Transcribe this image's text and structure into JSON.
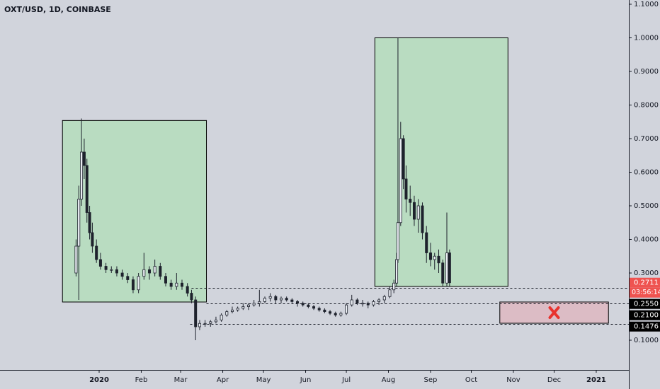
{
  "chart_data": {
    "type": "candlestick",
    "title": "OXT/USD, 1D, COINBASE",
    "x": [
      -17,
      -15,
      -13,
      -11,
      -9,
      -7,
      -5,
      -2,
      1,
      5,
      9,
      13,
      17,
      21,
      25,
      29,
      33,
      37,
      41,
      45,
      49,
      53,
      57,
      61,
      65,
      68,
      71,
      74,
      78,
      82,
      86,
      90,
      94,
      98,
      102,
      106,
      110,
      114,
      118,
      122,
      126,
      130,
      134,
      138,
      142,
      146,
      150,
      154,
      158,
      162,
      166,
      170,
      174,
      178,
      182,
      186,
      190,
      194,
      198,
      202,
      206,
      210,
      214,
      217,
      219,
      220,
      222,
      224,
      226,
      229,
      232,
      235,
      238,
      241,
      244,
      247,
      250,
      253,
      256,
      258
    ],
    "open": [
      0.3,
      0.38,
      0.52,
      0.66,
      0.62,
      0.48,
      0.42,
      0.38,
      0.34,
      0.32,
      0.31,
      0.31,
      0.3,
      0.29,
      0.28,
      0.25,
      0.29,
      0.31,
      0.3,
      0.32,
      0.29,
      0.27,
      0.26,
      0.27,
      0.26,
      0.24,
      0.22,
      0.14,
      0.15,
      0.15,
      0.155,
      0.16,
      0.175,
      0.185,
      0.19,
      0.195,
      0.2,
      0.205,
      0.21,
      0.215,
      0.225,
      0.23,
      0.22,
      0.225,
      0.22,
      0.215,
      0.21,
      0.205,
      0.2,
      0.195,
      0.19,
      0.185,
      0.18,
      0.175,
      0.18,
      0.205,
      0.22,
      0.21,
      0.21,
      0.205,
      0.215,
      0.22,
      0.23,
      0.25,
      0.27,
      0.34,
      0.45,
      0.7,
      0.58,
      0.52,
      0.51,
      0.46,
      0.5,
      0.42,
      0.36,
      0.34,
      0.35,
      0.33,
      0.27,
      0.36
    ],
    "high": [
      0.4,
      0.56,
      0.76,
      0.7,
      0.64,
      0.5,
      0.45,
      0.4,
      0.36,
      0.33,
      0.32,
      0.32,
      0.31,
      0.3,
      0.29,
      0.3,
      0.36,
      0.32,
      0.34,
      0.33,
      0.3,
      0.28,
      0.3,
      0.28,
      0.27,
      0.25,
      0.23,
      0.16,
      0.16,
      0.16,
      0.17,
      0.18,
      0.19,
      0.2,
      0.2,
      0.21,
      0.21,
      0.22,
      0.25,
      0.23,
      0.24,
      0.235,
      0.23,
      0.23,
      0.225,
      0.22,
      0.215,
      0.21,
      0.205,
      0.2,
      0.195,
      0.19,
      0.185,
      0.185,
      0.21,
      0.235,
      0.225,
      0.22,
      0.215,
      0.22,
      0.225,
      0.235,
      0.26,
      0.28,
      0.36,
      1.0,
      0.75,
      0.71,
      0.62,
      0.56,
      0.53,
      0.52,
      0.51,
      0.44,
      0.39,
      0.36,
      0.37,
      0.34,
      0.48,
      0.37
    ],
    "low": [
      0.29,
      0.22,
      0.5,
      0.58,
      0.45,
      0.4,
      0.36,
      0.33,
      0.31,
      0.3,
      0.3,
      0.29,
      0.28,
      0.27,
      0.24,
      0.24,
      0.28,
      0.28,
      0.29,
      0.28,
      0.26,
      0.25,
      0.25,
      0.25,
      0.23,
      0.21,
      0.1,
      0.13,
      0.14,
      0.14,
      0.15,
      0.155,
      0.17,
      0.18,
      0.185,
      0.19,
      0.19,
      0.2,
      0.2,
      0.21,
      0.215,
      0.21,
      0.21,
      0.215,
      0.21,
      0.2,
      0.2,
      0.195,
      0.19,
      0.185,
      0.18,
      0.175,
      0.17,
      0.17,
      0.175,
      0.2,
      0.205,
      0.2,
      0.195,
      0.2,
      0.205,
      0.21,
      0.225,
      0.24,
      0.26,
      0.33,
      0.44,
      0.55,
      0.48,
      0.47,
      0.44,
      0.42,
      0.4,
      0.33,
      0.32,
      0.31,
      0.3,
      0.26,
      0.26,
      0.26
    ],
    "close": [
      0.38,
      0.52,
      0.66,
      0.62,
      0.48,
      0.42,
      0.38,
      0.34,
      0.32,
      0.31,
      0.31,
      0.3,
      0.29,
      0.28,
      0.25,
      0.29,
      0.31,
      0.3,
      0.32,
      0.29,
      0.27,
      0.26,
      0.27,
      0.26,
      0.24,
      0.22,
      0.14,
      0.15,
      0.15,
      0.155,
      0.16,
      0.175,
      0.185,
      0.19,
      0.195,
      0.2,
      0.205,
      0.21,
      0.215,
      0.225,
      0.23,
      0.22,
      0.225,
      0.22,
      0.215,
      0.21,
      0.205,
      0.2,
      0.195,
      0.19,
      0.185,
      0.18,
      0.175,
      0.18,
      0.205,
      0.22,
      0.21,
      0.21,
      0.205,
      0.215,
      0.22,
      0.23,
      0.25,
      0.27,
      0.34,
      0.45,
      0.7,
      0.58,
      0.52,
      0.51,
      0.46,
      0.5,
      0.42,
      0.36,
      0.34,
      0.35,
      0.33,
      0.27,
      0.36,
      0.2711
    ],
    "up_color": "#e9ecf2",
    "down_color": "#1e222d",
    "xlim": [
      -73,
      390
    ],
    "ylim": [
      0.0116,
      1.1126
    ],
    "xticks": [
      {
        "value": 0,
        "label": "2020"
      },
      {
        "value": 31,
        "label": "Feb"
      },
      {
        "value": 60,
        "label": "Mar"
      },
      {
        "value": 91,
        "label": "Apr"
      },
      {
        "value": 121,
        "label": "May"
      },
      {
        "value": 152,
        "label": "Jun"
      },
      {
        "value": 182,
        "label": "Jul"
      },
      {
        "value": 213,
        "label": "Aug"
      },
      {
        "value": 244,
        "label": "Sep"
      },
      {
        "value": 274,
        "label": "Oct"
      },
      {
        "value": 305,
        "label": "Nov"
      },
      {
        "value": 335,
        "label": "Dec"
      },
      {
        "value": 366,
        "label": "2021"
      }
    ],
    "yticks": [
      {
        "value": 0.1,
        "label": "0.1000"
      },
      {
        "value": 0.3,
        "label": "0.3000"
      },
      {
        "value": 0.4,
        "label": "0.4000"
      },
      {
        "value": 0.5,
        "label": "0.5000"
      },
      {
        "value": 0.6,
        "label": "0.6000"
      },
      {
        "value": 0.7,
        "label": "0.7000"
      },
      {
        "value": 0.8,
        "label": "0.8000"
      },
      {
        "value": 0.9,
        "label": "0.9000"
      },
      {
        "value": 1.0,
        "label": "1.0000"
      },
      {
        "value": 1.1,
        "label": "1.1000"
      }
    ],
    "zones": [
      {
        "x0": -27,
        "x1": 79,
        "y0": 0.754,
        "y1": 0.2137,
        "color": "#b9dcc1"
      },
      {
        "x0": 203,
        "x1": 301,
        "y0": 1.0,
        "y1": 0.26,
        "color": "#b9dcc1"
      },
      {
        "x0": 295,
        "x1": 375,
        "y0": 0.2137,
        "y1": 0.1505,
        "color": "#dcbcc5"
      }
    ],
    "levels": [
      {
        "value": 0.255,
        "label": "0.2550",
        "from": 68
      },
      {
        "value": 0.21,
        "label": "0.2100",
        "from": 79
      },
      {
        "value": 0.1476,
        "label": "0.1476",
        "from": 67
      }
    ],
    "current": {
      "value": 0.2711,
      "label": "0.2711",
      "countdown": "03:56:14",
      "color": "#ef5350"
    }
  }
}
